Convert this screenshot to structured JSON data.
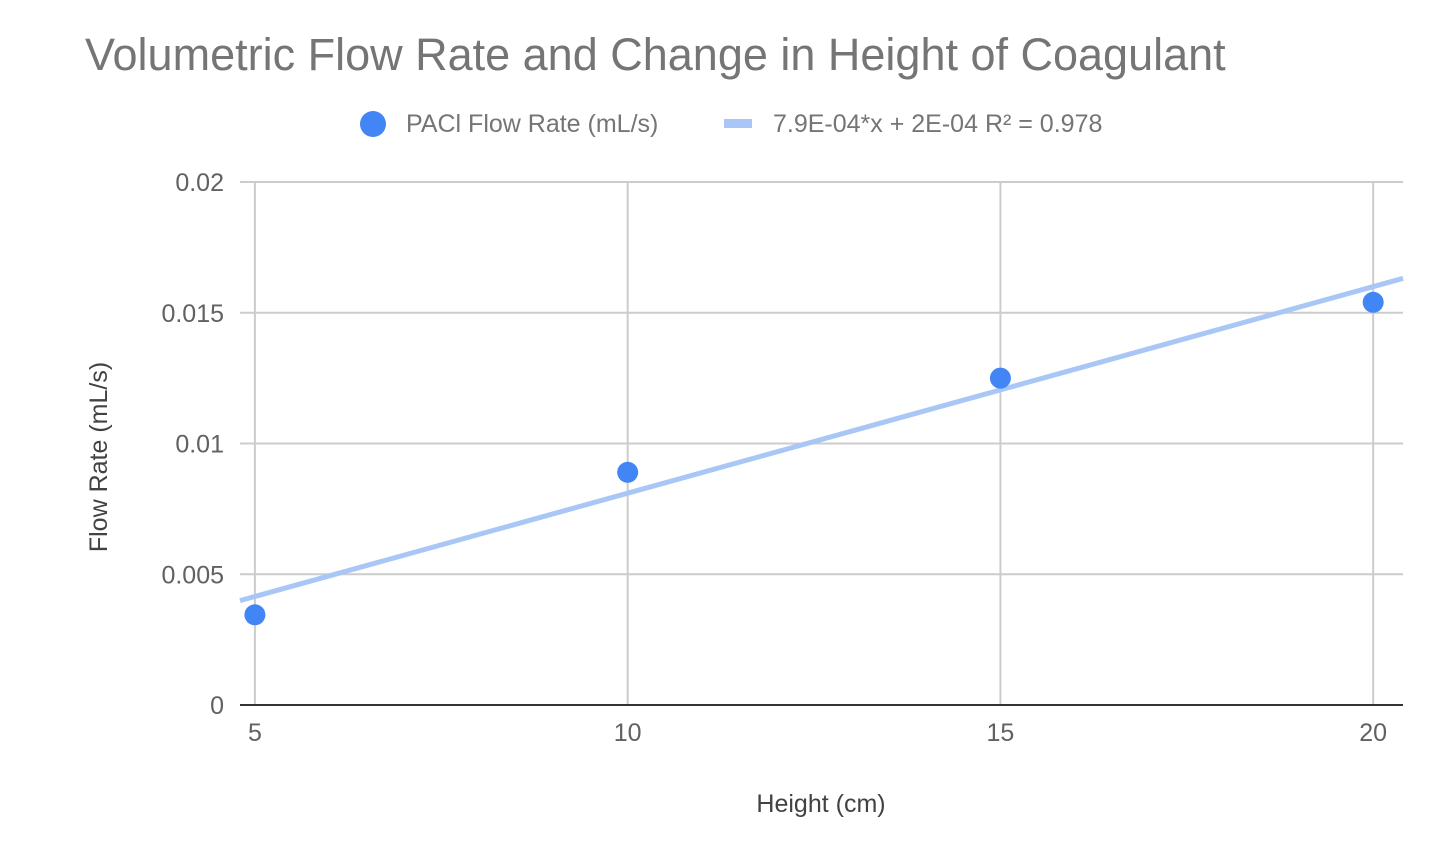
{
  "chart_data": {
    "type": "scatter",
    "title": "Volumetric Flow Rate and Change in Height of Coagulant",
    "xlabel": "Height (cm)",
    "ylabel": "Flow Rate (mL/s)",
    "xlim": [
      4.8,
      20.4
    ],
    "ylim": [
      0,
      0.02
    ],
    "x_ticks": [
      5,
      10,
      15,
      20
    ],
    "x_tick_labels": [
      "5",
      "10",
      "15",
      "20"
    ],
    "y_ticks": [
      0,
      0.005,
      0.01,
      0.015,
      0.02
    ],
    "y_tick_labels": [
      "0",
      "0.005",
      "0.01",
      "0.015",
      "0.02"
    ],
    "grid": true,
    "legend_position": "top",
    "series": [
      {
        "name": "PACl Flow Rate (mL/s)",
        "kind": "points",
        "color": "#4285f4",
        "x": [
          5,
          10,
          15,
          20
        ],
        "y": [
          0.00345,
          0.0089,
          0.0125,
          0.0154
        ]
      },
      {
        "name": "7.9E-04*x + 2E-04 R² = 0.978",
        "kind": "trendline",
        "color": "#a8c7f7",
        "slope": 0.00079,
        "intercept": 0.0002,
        "x": [
          4.8,
          20.4
        ]
      }
    ]
  }
}
